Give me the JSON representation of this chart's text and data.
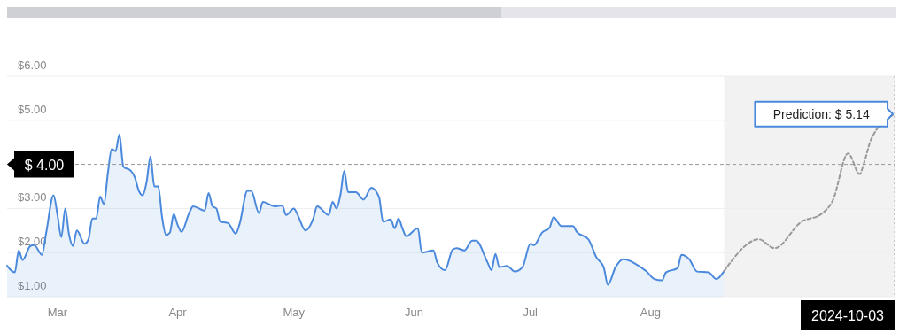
{
  "chart_data": {
    "type": "area",
    "x": [
      "2024-02-17",
      "2024-02-18",
      "2024-02-19",
      "2024-02-20",
      "2024-02-21",
      "2024-02-23",
      "2024-02-24",
      "2024-02-26",
      "2024-02-27",
      "2024-02-29",
      "2024-03-01",
      "2024-03-02",
      "2024-03-03",
      "2024-03-04",
      "2024-03-05",
      "2024-03-06",
      "2024-03-08",
      "2024-03-09",
      "2024-03-10",
      "2024-03-11",
      "2024-03-12",
      "2024-03-13",
      "2024-03-14",
      "2024-03-15",
      "2024-03-16",
      "2024-03-17",
      "2024-03-18",
      "2024-03-20",
      "2024-03-21",
      "2024-03-22",
      "2024-03-23",
      "2024-03-24",
      "2024-03-25",
      "2024-03-26",
      "2024-03-27",
      "2024-03-28",
      "2024-03-29",
      "2024-03-30",
      "2024-03-31",
      "2024-04-01",
      "2024-04-02",
      "2024-04-04",
      "2024-04-05",
      "2024-04-08",
      "2024-04-09",
      "2024-04-10",
      "2024-04-11",
      "2024-04-12",
      "2024-04-14",
      "2024-04-16",
      "2024-04-17",
      "2024-04-19",
      "2024-04-20",
      "2024-04-22",
      "2024-04-23",
      "2024-04-26",
      "2024-04-28",
      "2024-04-29",
      "2024-05-01",
      "2024-05-02",
      "2024-05-04",
      "2024-05-06",
      "2024-05-07",
      "2024-05-10",
      "2024-05-11",
      "2024-05-12",
      "2024-05-13",
      "2024-05-14",
      "2024-05-15",
      "2024-05-17",
      "2024-05-19",
      "2024-05-21",
      "2024-05-23",
      "2024-05-24",
      "2024-05-26",
      "2024-05-27",
      "2024-05-28",
      "2024-05-29",
      "2024-05-30",
      "2024-06-02",
      "2024-06-03",
      "2024-06-06",
      "2024-06-07",
      "2024-06-09",
      "2024-06-11",
      "2024-06-12",
      "2024-06-14",
      "2024-06-16",
      "2024-06-17",
      "2024-06-20",
      "2024-06-21",
      "2024-06-22",
      "2024-06-23",
      "2024-06-25",
      "2024-06-27",
      "2024-06-29",
      "2024-07-01",
      "2024-07-02",
      "2024-07-04",
      "2024-07-06",
      "2024-07-07",
      "2024-07-09",
      "2024-07-10",
      "2024-07-12",
      "2024-07-13",
      "2024-07-16",
      "2024-07-18",
      "2024-07-20",
      "2024-07-21",
      "2024-07-23",
      "2024-07-25",
      "2024-07-27",
      "2024-07-28",
      "2024-07-31",
      "2024-08-02",
      "2024-08-04",
      "2024-08-05",
      "2024-08-08",
      "2024-08-09",
      "2024-08-11",
      "2024-08-13",
      "2024-08-16",
      "2024-08-18",
      "2024-08-20"
    ],
    "series": [
      {
        "color": "#4a89dc",
        "values": [
          1.7,
          1.6,
          1.55,
          2.05,
          1.83,
          2.15,
          2.17,
          1.95,
          2.4,
          3.3,
          2.85,
          2.35,
          3.0,
          2.4,
          2.15,
          2.5,
          2.2,
          2.3,
          2.77,
          2.77,
          3.27,
          3.1,
          3.8,
          4.35,
          4.3,
          4.68,
          3.95,
          3.85,
          3.7,
          3.4,
          3.3,
          3.6,
          4.18,
          3.5,
          3.5,
          2.8,
          2.4,
          2.45,
          2.87,
          2.63,
          2.47,
          2.9,
          3.05,
          2.95,
          3.35,
          3.05,
          3.0,
          2.7,
          2.67,
          2.43,
          2.65,
          3.4,
          3.4,
          2.9,
          3.15,
          3.05,
          3.07,
          2.85,
          3.0,
          2.85,
          2.5,
          2.77,
          3.05,
          2.85,
          3.15,
          3.0,
          3.3,
          3.85,
          3.37,
          3.37,
          3.2,
          3.47,
          3.25,
          2.7,
          2.75,
          2.55,
          2.77,
          2.55,
          2.37,
          2.55,
          2.0,
          2.05,
          1.77,
          1.6,
          2.07,
          2.1,
          2.05,
          2.27,
          2.27,
          1.77,
          1.6,
          1.97,
          1.67,
          1.7,
          1.57,
          1.67,
          2.2,
          2.17,
          2.45,
          2.57,
          2.8,
          2.6,
          2.6,
          2.6,
          2.47,
          2.3,
          1.9,
          1.65,
          1.27,
          1.67,
          1.85,
          1.8,
          1.75,
          1.57,
          1.4,
          1.37,
          1.55,
          1.65,
          1.95,
          1.85,
          1.57,
          1.55,
          1.4,
          1.58
        ]
      },
      {
        "type": "line",
        "color": "#999999",
        "line_style": "dashed",
        "x": [
          "2024-08-20",
          "2024-08-29",
          "2024-09-02",
          "2024-09-09",
          "2024-09-14",
          "2024-09-17",
          "2024-09-21",
          "2024-09-24",
          "2024-09-25",
          "2024-09-27",
          "2024-10-03"
        ],
        "values": [
          1.58,
          2.3,
          2.1,
          2.7,
          2.87,
          3.17,
          4.25,
          3.78,
          4.0,
          4.58,
          5.14
        ]
      }
    ],
    "xlim": [
      "2024-02-17",
      "2024-10-03"
    ],
    "xticks": [
      {
        "value": "2024-03-01",
        "label": "Mar"
      },
      {
        "value": "2024-04-01",
        "label": "Apr"
      },
      {
        "value": "2024-05-01",
        "label": "May"
      },
      {
        "value": "2024-06-01",
        "label": "Jun"
      },
      {
        "value": "2024-07-01",
        "label": "Jul"
      },
      {
        "value": "2024-08-01",
        "label": "Aug"
      }
    ],
    "ylim": [
      1,
      6
    ],
    "yticks": [
      {
        "value": 1,
        "label": "$1.00"
      },
      {
        "value": 2,
        "label": "$2.00"
      },
      {
        "value": 3,
        "label": "$3.00"
      },
      {
        "value": 5,
        "label": "$5.00"
      },
      {
        "value": 6,
        "label": "$6.00"
      }
    ],
    "grid": "y",
    "ref_lines": [
      {
        "axis": "y",
        "value": 4,
        "label": "$ 4.00",
        "color": "#999999",
        "line_style": "dashed"
      },
      {
        "axis": "x",
        "value": "2024-10-03",
        "label": "2024-10-03",
        "color": "#999999",
        "line_style": "dotted"
      }
    ],
    "bands": [
      {
        "axis": "x",
        "from": "2024-08-20",
        "to": "2024-10-03",
        "color": "#f2f2f2"
      }
    ],
    "annotations": [
      {
        "text": "Prediction: $ 5.14",
        "x": "2024-10-03",
        "y": 5.14
      }
    ]
  }
}
